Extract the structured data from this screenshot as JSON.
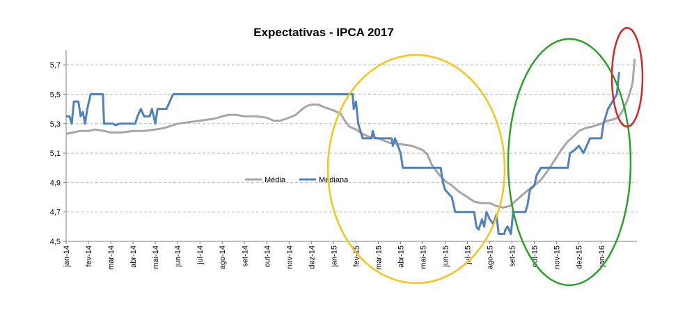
{
  "chart_data": {
    "type": "line",
    "title": "Expectativas - IPCA 2017",
    "xlabel": "",
    "ylabel": "",
    "ylim": [
      4.5,
      5.8
    ],
    "yticks": [
      "4,5",
      "4,7",
      "4,9",
      "5,1",
      "5,3",
      "5,5",
      "5,7"
    ],
    "ytick_values": [
      4.5,
      4.7,
      4.9,
      5.1,
      5.3,
      5.5,
      5.7
    ],
    "grid": "horizontal dashed",
    "legend_placement": "center",
    "categories": [
      "jan-14",
      "fev-14",
      "mar-14",
      "abr-14",
      "mai-14",
      "jun-14",
      "jul-14",
      "ago-14",
      "set-14",
      "out-14",
      "nov-14",
      "dez-14",
      "jan-15",
      "fev-15",
      "mar-15",
      "abr-15",
      "mai-15",
      "jun-15",
      "jul-15",
      "ago-15",
      "set-15",
      "out-15",
      "nov-15",
      "dez-15",
      "jan-16"
    ],
    "series": [
      {
        "name": "Média",
        "color": "#a6a6a6",
        "points": [
          [
            0,
            5.23
          ],
          [
            0.3,
            5.24
          ],
          [
            0.6,
            5.25
          ],
          [
            1.0,
            5.25
          ],
          [
            1.3,
            5.26
          ],
          [
            1.7,
            5.25
          ],
          [
            2.0,
            5.24
          ],
          [
            2.5,
            5.24
          ],
          [
            3.0,
            5.25
          ],
          [
            3.5,
            5.25
          ],
          [
            4.0,
            5.26
          ],
          [
            4.4,
            5.27
          ],
          [
            4.6,
            5.28
          ],
          [
            5.0,
            5.3
          ],
          [
            5.5,
            5.31
          ],
          [
            6.0,
            5.32
          ],
          [
            6.5,
            5.33
          ],
          [
            6.8,
            5.34
          ],
          [
            7.0,
            5.35
          ],
          [
            7.3,
            5.36
          ],
          [
            7.6,
            5.36
          ],
          [
            8.0,
            5.35
          ],
          [
            8.5,
            5.35
          ],
          [
            9.0,
            5.34
          ],
          [
            9.3,
            5.32
          ],
          [
            9.6,
            5.32
          ],
          [
            10.0,
            5.34
          ],
          [
            10.3,
            5.36
          ],
          [
            10.6,
            5.4
          ],
          [
            10.8,
            5.42
          ],
          [
            11.0,
            5.43
          ],
          [
            11.3,
            5.43
          ],
          [
            11.6,
            5.41
          ],
          [
            12.0,
            5.39
          ],
          [
            12.3,
            5.37
          ],
          [
            12.5,
            5.32
          ],
          [
            12.7,
            5.28
          ],
          [
            13.0,
            5.26
          ],
          [
            13.3,
            5.23
          ],
          [
            13.6,
            5.21
          ],
          [
            14.0,
            5.2
          ],
          [
            14.5,
            5.17
          ],
          [
            15.0,
            5.16
          ],
          [
            15.5,
            5.15
          ],
          [
            16.0,
            5.12
          ],
          [
            16.2,
            5.09
          ],
          [
            16.4,
            5.02
          ],
          [
            16.7,
            4.96
          ],
          [
            17.0,
            4.91
          ],
          [
            17.3,
            4.88
          ],
          [
            17.6,
            4.84
          ],
          [
            18.0,
            4.8
          ],
          [
            18.3,
            4.77
          ],
          [
            18.6,
            4.76
          ],
          [
            19.0,
            4.76
          ],
          [
            19.3,
            4.74
          ],
          [
            19.6,
            4.73
          ],
          [
            19.9,
            4.74
          ],
          [
            20.2,
            4.78
          ],
          [
            20.5,
            4.82
          ],
          [
            20.8,
            4.86
          ],
          [
            21.0,
            4.88
          ],
          [
            21.3,
            4.92
          ],
          [
            21.6,
            4.98
          ],
          [
            21.9,
            5.05
          ],
          [
            22.2,
            5.12
          ],
          [
            22.5,
            5.18
          ],
          [
            22.8,
            5.22
          ],
          [
            23.0,
            5.25
          ],
          [
            23.3,
            5.27
          ],
          [
            23.6,
            5.28
          ],
          [
            24.0,
            5.3
          ],
          [
            24.3,
            5.32
          ],
          [
            24.6,
            5.33
          ],
          [
            24.8,
            5.35
          ],
          [
            25.0,
            5.4
          ],
          [
            25.2,
            5.47
          ],
          [
            25.4,
            5.57
          ],
          [
            25.5,
            5.74
          ]
        ]
      },
      {
        "name": "Mediana",
        "color": "#4f81bd",
        "points": [
          [
            0,
            5.35
          ],
          [
            0.15,
            5.35
          ],
          [
            0.25,
            5.3
          ],
          [
            0.35,
            5.45
          ],
          [
            0.55,
            5.45
          ],
          [
            0.65,
            5.35
          ],
          [
            0.75,
            5.38
          ],
          [
            0.85,
            5.3
          ],
          [
            0.95,
            5.4
          ],
          [
            1.1,
            5.5
          ],
          [
            1.65,
            5.5
          ],
          [
            1.7,
            5.3
          ],
          [
            2.1,
            5.3
          ],
          [
            2.2,
            5.29
          ],
          [
            2.4,
            5.3
          ],
          [
            3.1,
            5.3
          ],
          [
            3.2,
            5.35
          ],
          [
            3.35,
            5.4
          ],
          [
            3.5,
            5.35
          ],
          [
            3.75,
            5.35
          ],
          [
            3.85,
            5.4
          ],
          [
            4.0,
            5.3
          ],
          [
            4.1,
            5.4
          ],
          [
            4.5,
            5.4
          ],
          [
            4.65,
            5.45
          ],
          [
            4.8,
            5.5
          ],
          [
            12.85,
            5.5
          ],
          [
            12.9,
            5.4
          ],
          [
            13.0,
            5.45
          ],
          [
            13.1,
            5.3
          ],
          [
            13.3,
            5.2
          ],
          [
            13.7,
            5.2
          ],
          [
            13.75,
            5.25
          ],
          [
            13.85,
            5.2
          ],
          [
            14.6,
            5.2
          ],
          [
            14.65,
            5.15
          ],
          [
            14.75,
            5.2
          ],
          [
            15.0,
            5.1
          ],
          [
            15.1,
            5.0
          ],
          [
            16.8,
            5.0
          ],
          [
            16.9,
            4.9
          ],
          [
            17.0,
            4.85
          ],
          [
            17.3,
            4.8
          ],
          [
            17.45,
            4.7
          ],
          [
            18.3,
            4.7
          ],
          [
            18.4,
            4.6
          ],
          [
            18.5,
            4.58
          ],
          [
            18.65,
            4.65
          ],
          [
            18.75,
            4.6
          ],
          [
            18.85,
            4.7
          ],
          [
            19.0,
            4.65
          ],
          [
            19.15,
            4.62
          ],
          [
            19.3,
            4.68
          ],
          [
            19.4,
            4.55
          ],
          [
            19.65,
            4.55
          ],
          [
            19.7,
            4.58
          ],
          [
            19.8,
            4.6
          ],
          [
            19.95,
            4.55
          ],
          [
            20.05,
            4.7
          ],
          [
            20.6,
            4.7
          ],
          [
            20.7,
            4.75
          ],
          [
            20.8,
            4.85
          ],
          [
            21.0,
            4.88
          ],
          [
            21.1,
            4.95
          ],
          [
            21.3,
            5.0
          ],
          [
            22.5,
            5.0
          ],
          [
            22.6,
            5.1
          ],
          [
            22.8,
            5.12
          ],
          [
            23.0,
            5.15
          ],
          [
            23.2,
            5.1
          ],
          [
            23.5,
            5.2
          ],
          [
            24.0,
            5.2
          ],
          [
            24.1,
            5.3
          ],
          [
            24.3,
            5.4
          ],
          [
            24.5,
            5.45
          ],
          [
            24.7,
            5.5
          ],
          [
            24.8,
            5.65
          ]
        ]
      }
    ],
    "annotations": [
      {
        "shape": "ellipse",
        "color": "#f5c518"
      },
      {
        "shape": "ellipse",
        "color": "#2ca02c"
      },
      {
        "shape": "ellipse",
        "color": "#d62728"
      }
    ]
  }
}
